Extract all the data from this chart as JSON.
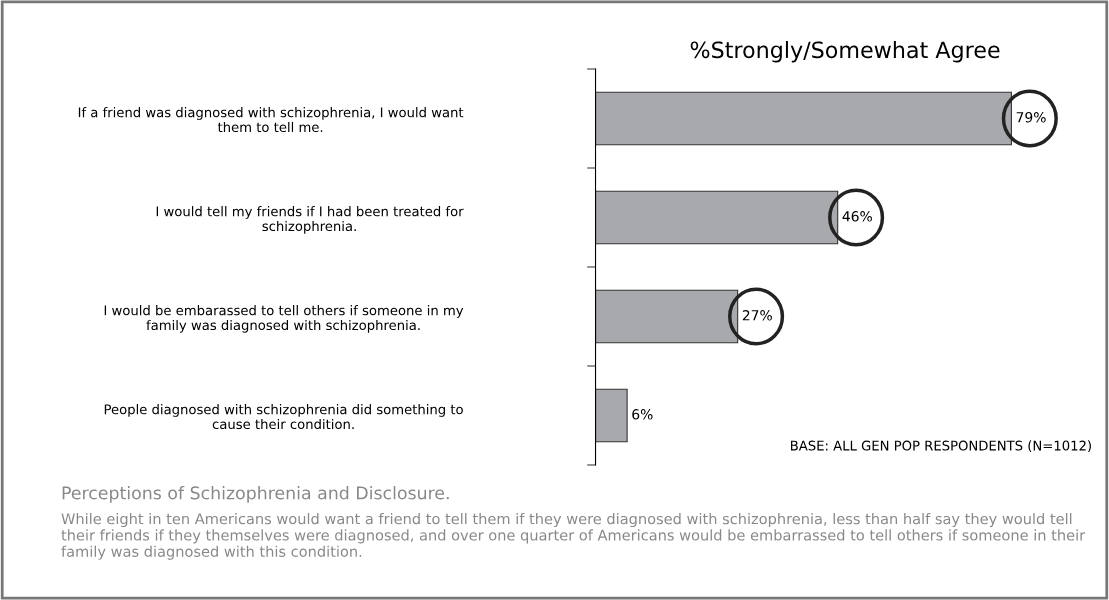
{
  "chart_data": {
    "type": "bar",
    "orientation": "horizontal",
    "title": "%Strongly/Somewhat Agree",
    "categories": [
      "If a friend was diagnosed with schizophrenia, I would want\nthem to tell me.",
      "I would tell my friends if I had been treated for\nschizophrenia.",
      "I would be embarassed to tell others if someone in my\nfamily was diagnosed with schizophrenia.",
      "People diagnosed with schizophrenia did something to\ncause their condition."
    ],
    "values": [
      79,
      46,
      27,
      6
    ],
    "color": "#a7a9ac",
    "value_labels": [
      "79%",
      "46%",
      "27%",
      "6%"
    ],
    "annotations": [
      "BASE: ALL GEN POP RESPONDENTS (N=1012)",
      "Perceptions of Schizophrenia and Disclosure.",
      "While eight in ten Americans would want a friend to tell them if they were diagnosed with schizophrenia, less than half say they would tell their friends if they themselves were diagnosed, and over one quarter of Americans would be embarrassed to tell others if someone in their family was diagnosed with this condition."
    ],
    "grid": false,
    "legend": false
  }
}
